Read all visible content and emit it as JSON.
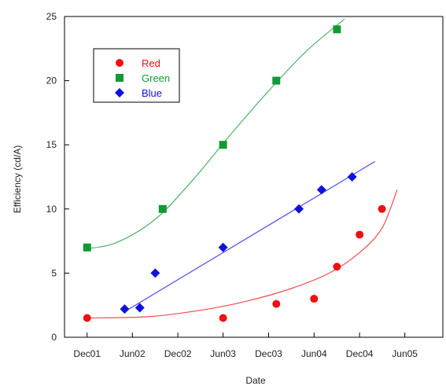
{
  "chart_data": {
    "type": "scatter",
    "title": "",
    "xlabel": "Date",
    "ylabel": "Efficiency (cd/A)",
    "ylim": [
      0,
      25
    ],
    "yticks": [
      0,
      5,
      10,
      15,
      20,
      25
    ],
    "xlim": [
      "2001-09-01",
      "2005-11-01"
    ],
    "xticks": [
      {
        "date": "2001-12-01",
        "label": "Dec01"
      },
      {
        "date": "2002-06-01",
        "label": "Jun02"
      },
      {
        "date": "2002-12-01",
        "label": "Dec02"
      },
      {
        "date": "2003-06-01",
        "label": "Jun03"
      },
      {
        "date": "2003-12-01",
        "label": "Dec03"
      },
      {
        "date": "2004-06-01",
        "label": "Jun04"
      },
      {
        "date": "2004-12-01",
        "label": "Dec04"
      },
      {
        "date": "2005-06-01",
        "label": "Jun05"
      }
    ],
    "grid": false,
    "legend_position": "top-left",
    "series": [
      {
        "name": "Red",
        "color": "#ee1111",
        "marker": "circle",
        "points": [
          {
            "x": "2001-12-01",
            "y": 1.5
          },
          {
            "x": "2003-06-01",
            "y": 1.5
          },
          {
            "x": "2004-01-01",
            "y": 2.6
          },
          {
            "x": "2004-06-01",
            "y": 3.0
          },
          {
            "x": "2004-09-01",
            "y": 5.5
          },
          {
            "x": "2004-12-01",
            "y": 8.0
          },
          {
            "x": "2005-03-01",
            "y": 10.0
          }
        ],
        "fit": [
          {
            "x": "2001-12-01",
            "y": 1.5
          },
          {
            "x": "2002-08-01",
            "y": 1.6
          },
          {
            "x": "2003-03-01",
            "y": 2.1
          },
          {
            "x": "2003-09-01",
            "y": 2.8
          },
          {
            "x": "2004-03-01",
            "y": 3.8
          },
          {
            "x": "2004-08-01",
            "y": 5.0
          },
          {
            "x": "2004-12-01",
            "y": 6.6
          },
          {
            "x": "2005-03-01",
            "y": 8.5
          },
          {
            "x": "2005-05-01",
            "y": 11.5
          }
        ]
      },
      {
        "name": "Green",
        "color": "#119933",
        "marker": "square",
        "points": [
          {
            "x": "2001-12-01",
            "y": 7.0
          },
          {
            "x": "2002-10-01",
            "y": 10.0
          },
          {
            "x": "2003-06-01",
            "y": 15.0
          },
          {
            "x": "2004-01-01",
            "y": 20.0
          },
          {
            "x": "2004-09-01",
            "y": 24.0
          }
        ],
        "fit": [
          {
            "x": "2001-12-01",
            "y": 6.9
          },
          {
            "x": "2002-04-01",
            "y": 7.4
          },
          {
            "x": "2002-09-01",
            "y": 9.2
          },
          {
            "x": "2003-02-01",
            "y": 12.3
          },
          {
            "x": "2003-07-01",
            "y": 15.8
          },
          {
            "x": "2003-12-01",
            "y": 19.2
          },
          {
            "x": "2004-05-01",
            "y": 22.3
          },
          {
            "x": "2004-10-01",
            "y": 24.8
          }
        ]
      },
      {
        "name": "Blue",
        "color": "#1111dd",
        "marker": "diamond",
        "points": [
          {
            "x": "2002-05-01",
            "y": 2.2
          },
          {
            "x": "2002-07-01",
            "y": 2.3
          },
          {
            "x": "2002-09-01",
            "y": 5.0
          },
          {
            "x": "2003-06-01",
            "y": 7.0
          },
          {
            "x": "2004-04-01",
            "y": 10.0
          },
          {
            "x": "2004-07-01",
            "y": 11.5
          },
          {
            "x": "2004-11-01",
            "y": 12.5
          }
        ],
        "fit": [
          {
            "x": "2002-05-01",
            "y": 2.0
          },
          {
            "x": "2005-02-01",
            "y": 13.7
          }
        ]
      }
    ]
  }
}
